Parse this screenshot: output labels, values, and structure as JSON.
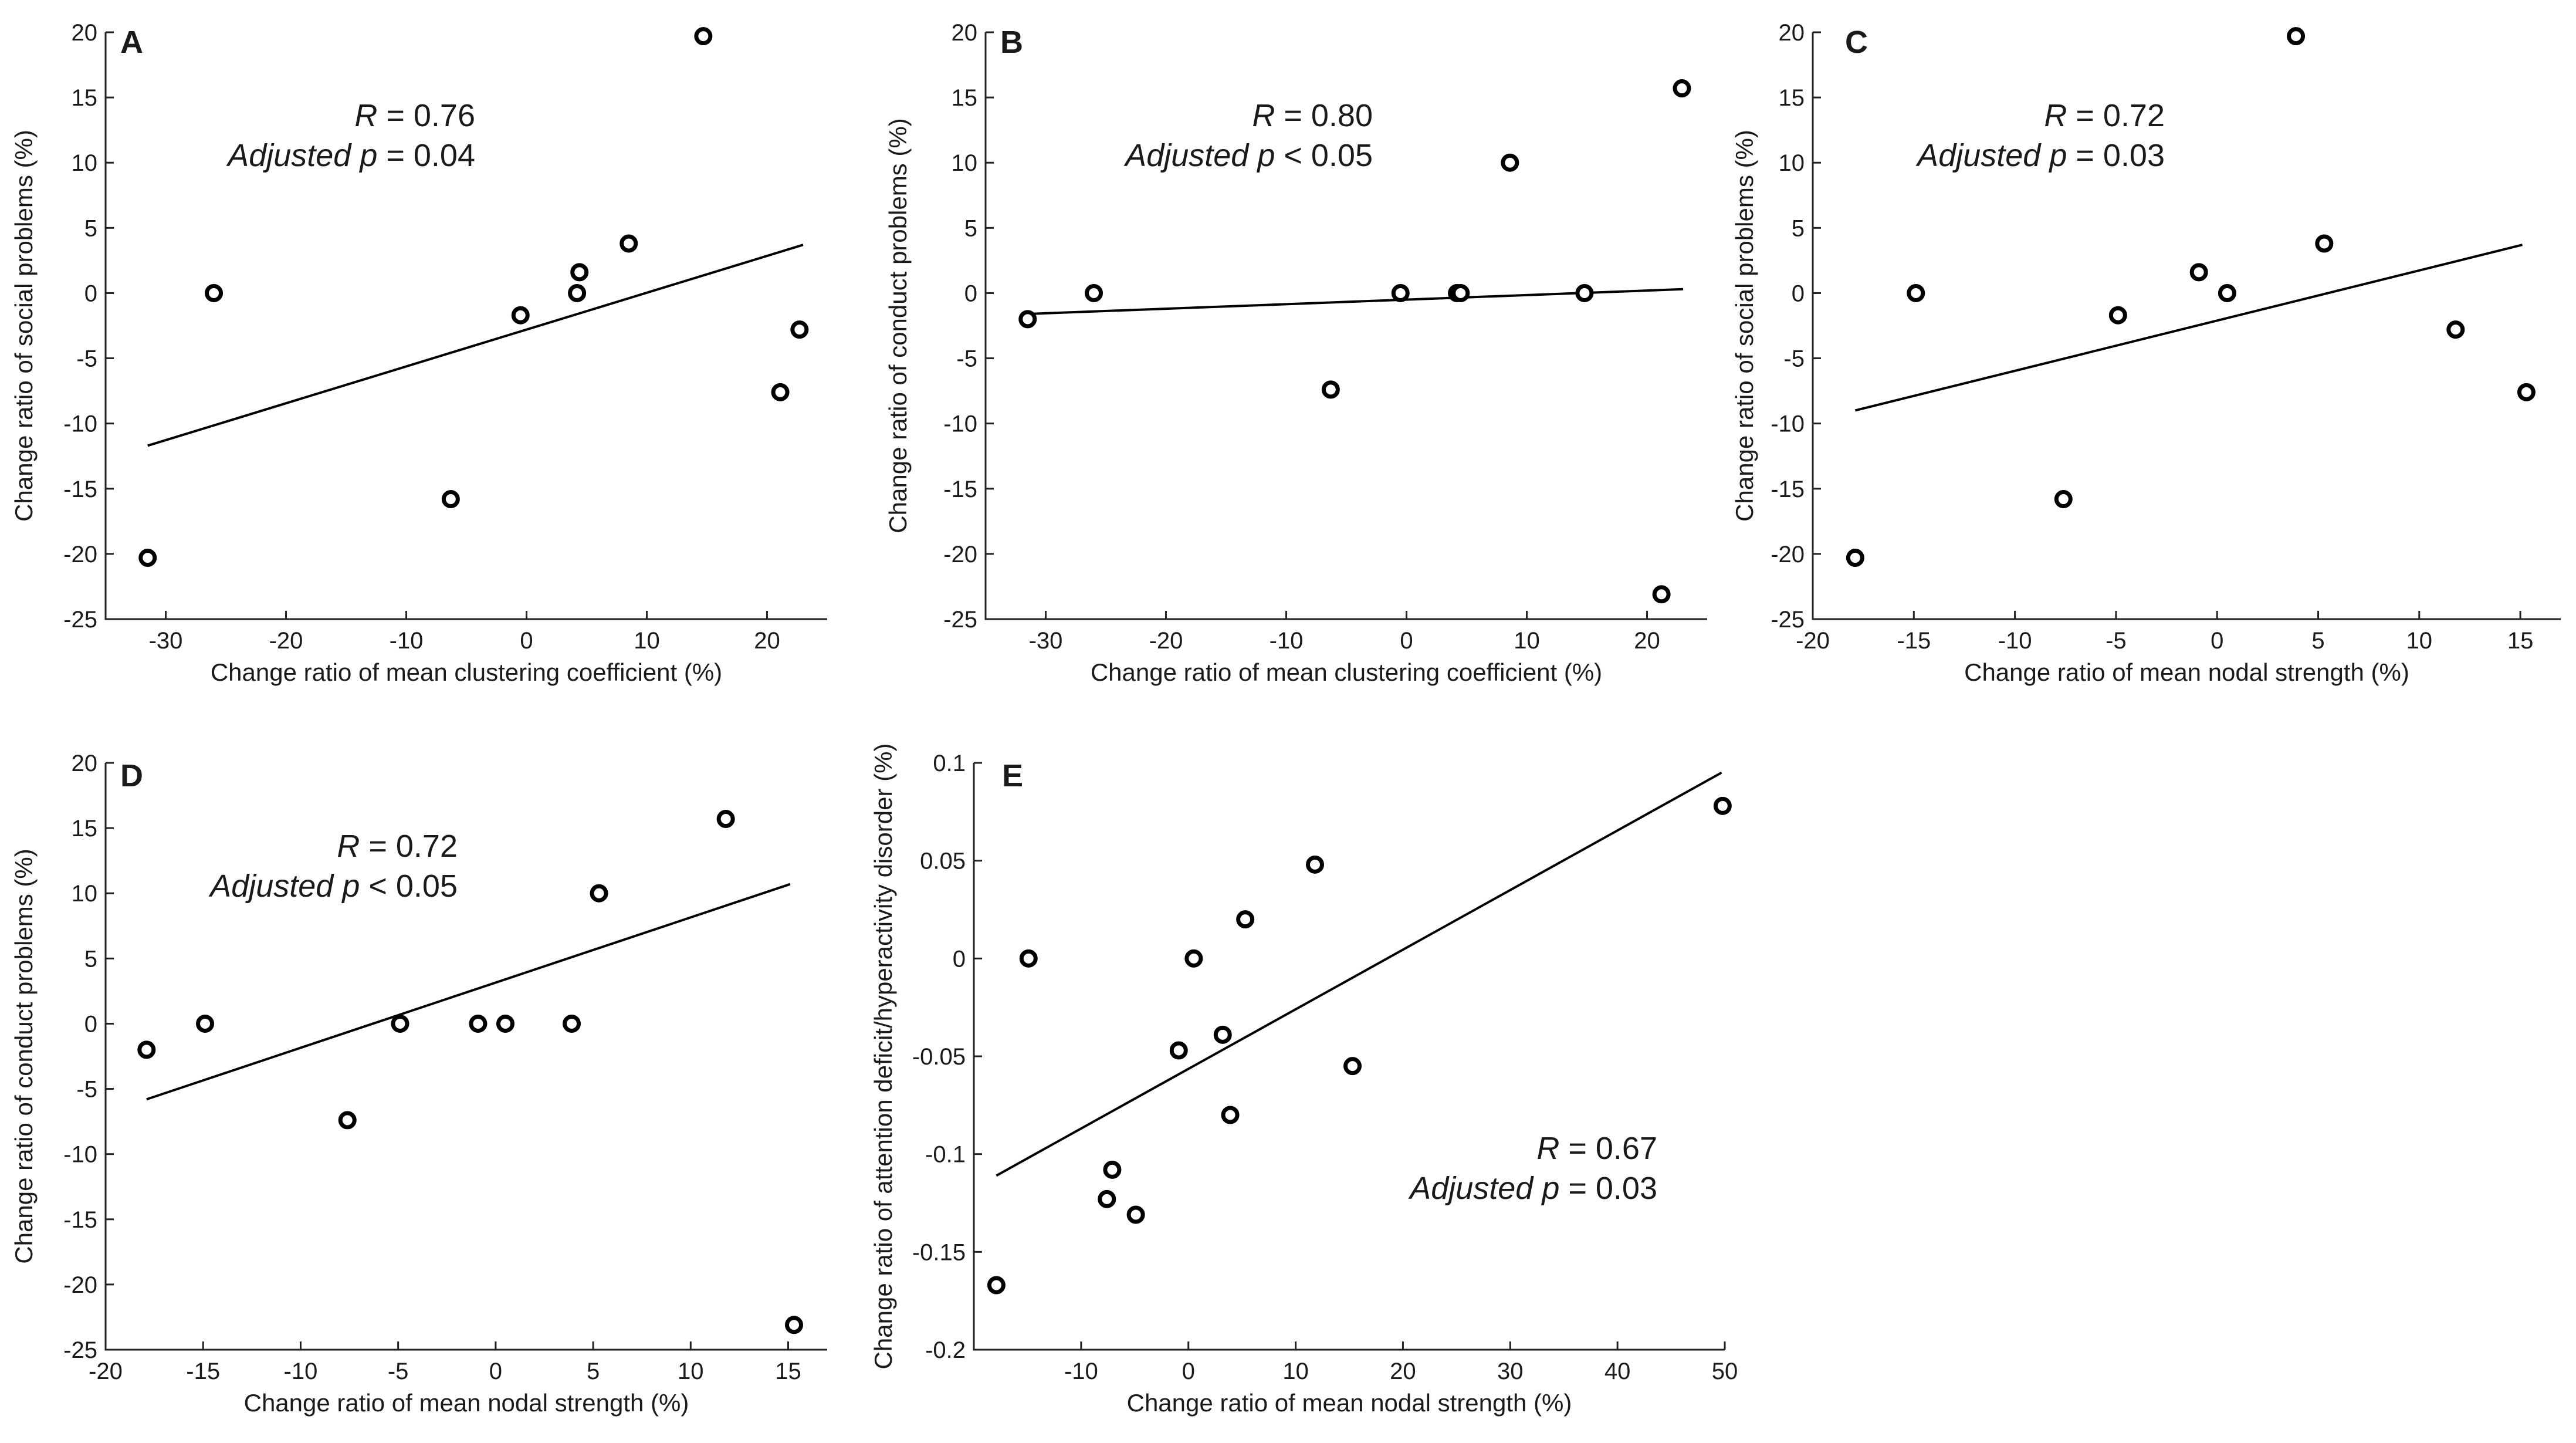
{
  "chart_data": [
    {
      "panel": "A",
      "type": "scatter",
      "xlabel": "Change ratio of mean clustering coefficient (%)",
      "ylabel": "Change ratio of social problems (%)",
      "xlim": [
        -35,
        25
      ],
      "ylim": [
        -25,
        20
      ],
      "xticks": [
        -30,
        -20,
        -10,
        0,
        10,
        20
      ],
      "yticks": [
        -25,
        -20,
        -15,
        -10,
        -5,
        0,
        5,
        10,
        15,
        20
      ],
      "points": [
        [
          -31.5,
          -20.3
        ],
        [
          -26,
          0
        ],
        [
          -6.3,
          -15.8
        ],
        [
          -0.5,
          -1.7
        ],
        [
          4.2,
          0
        ],
        [
          4.4,
          1.6
        ],
        [
          8.5,
          3.8
        ],
        [
          14.7,
          19.7
        ],
        [
          21.1,
          -7.6
        ],
        [
          22.7,
          -2.8
        ]
      ],
      "fit": [
        [
          -31.5,
          -11.7
        ],
        [
          23,
          3.7
        ]
      ],
      "annotation": {
        "r_prefix": "R",
        "r_value": "= 0.76",
        "p_prefix": "Adjusted p",
        "p_value": "= 0.04"
      }
    },
    {
      "panel": "B",
      "type": "scatter",
      "xlabel": "Change ratio of mean clustering coefficient (%)",
      "ylabel": "Change ratio of conduct problems (%)",
      "xlim": [
        -35,
        25
      ],
      "ylim": [
        -25,
        20
      ],
      "xticks": [
        -30,
        -20,
        -10,
        0,
        10,
        20
      ],
      "yticks": [
        -25,
        -20,
        -15,
        -10,
        -5,
        0,
        5,
        10,
        15,
        20
      ],
      "points": [
        [
          -31.5,
          -2
        ],
        [
          -26,
          0
        ],
        [
          -6.3,
          -7.4
        ],
        [
          -0.5,
          0
        ],
        [
          4.2,
          0
        ],
        [
          4.5,
          0
        ],
        [
          8.6,
          10
        ],
        [
          14.8,
          0
        ],
        [
          21.2,
          -23.1
        ],
        [
          22.9,
          15.7
        ]
      ],
      "fit": [
        [
          -31.5,
          -1.6
        ],
        [
          23,
          0.3
        ]
      ],
      "annotation": {
        "r_prefix": "R",
        "r_value": "= 0.80",
        "p_prefix": "Adjusted p",
        "p_value": "< 0.05"
      }
    },
    {
      "panel": "C",
      "type": "scatter",
      "xlabel": "Change ratio of mean nodal strength (%)",
      "ylabel": "Change ratio of social problems (%)",
      "xlim": [
        -20,
        17
      ],
      "ylim": [
        -25,
        20
      ],
      "xticks": [
        -20,
        -15,
        -10,
        -5,
        0,
        5,
        10,
        15
      ],
      "yticks": [
        -25,
        -20,
        -15,
        -10,
        -5,
        0,
        5,
        10,
        15,
        20
      ],
      "points": [
        [
          -17.9,
          -20.3
        ],
        [
          -14.9,
          0
        ],
        [
          -7.6,
          -15.8
        ],
        [
          -4.9,
          -1.7
        ],
        [
          -0.9,
          1.6
        ],
        [
          0.5,
          0
        ],
        [
          3.9,
          19.7
        ],
        [
          5.3,
          3.8
        ],
        [
          11.8,
          -2.8
        ],
        [
          15.3,
          -7.6
        ]
      ],
      "fit": [
        [
          -17.9,
          -9
        ],
        [
          15.1,
          3.7
        ]
      ],
      "annotation": {
        "r_prefix": "R",
        "r_value": "= 0.72",
        "p_prefix": "Adjusted p",
        "p_value": "= 0.03"
      }
    },
    {
      "panel": "D",
      "type": "scatter",
      "xlabel": "Change ratio of mean nodal strength (%)",
      "ylabel": "Change ratio of conduct problems (%)",
      "xlim": [
        -20,
        17
      ],
      "ylim": [
        -25,
        20
      ],
      "xticks": [
        -20,
        -15,
        -10,
        -5,
        0,
        5,
        10,
        15
      ],
      "yticks": [
        -25,
        -20,
        -15,
        -10,
        -5,
        0,
        5,
        10,
        15,
        20
      ],
      "points": [
        [
          -17.9,
          -2
        ],
        [
          -14.9,
          0
        ],
        [
          -7.6,
          -7.4
        ],
        [
          -4.9,
          0
        ],
        [
          -0.9,
          0
        ],
        [
          0.5,
          0
        ],
        [
          3.9,
          0
        ],
        [
          5.3,
          10
        ],
        [
          11.8,
          15.7
        ],
        [
          15.3,
          -23.1
        ]
      ],
      "fit": [
        [
          -17.9,
          -5.8
        ],
        [
          15.1,
          10.7
        ]
      ],
      "annotation": {
        "r_prefix": "R",
        "r_value": "= 0.72",
        "p_prefix": "Adjusted p",
        "p_value": "< 0.05"
      }
    },
    {
      "panel": "E",
      "type": "scatter",
      "xlabel": "Change ratio of mean nodal strength (%)",
      "ylabel": "Change ratio of attention deficit/hyperactivity disorder (%)",
      "xlim": [
        -20,
        50
      ],
      "ylim": [
        -0.2,
        0.1
      ],
      "xticks": [
        -10,
        0,
        10,
        20,
        30,
        40,
        50
      ],
      "yticks": [
        -0.2,
        -0.15,
        -0.1,
        -0.05,
        0,
        0.05,
        0.1
      ],
      "points": [
        [
          -17.9,
          -0.167
        ],
        [
          -14.9,
          0
        ],
        [
          -7.6,
          -0.123
        ],
        [
          -7.1,
          -0.108
        ],
        [
          -4.9,
          -0.131
        ],
        [
          -0.9,
          -0.047
        ],
        [
          0.5,
          0
        ],
        [
          3.2,
          -0.039
        ],
        [
          3.9,
          -0.08
        ],
        [
          5.3,
          0.02
        ],
        [
          11.8,
          0.048
        ],
        [
          15.3,
          -0.055
        ],
        [
          49.8,
          0.078
        ]
      ],
      "fit": [
        [
          -17.9,
          -0.111
        ],
        [
          49.7,
          0.095
        ]
      ],
      "annotation": {
        "r_prefix": "R",
        "r_value": "= 0.67",
        "p_prefix": "Adjusted  p",
        "p_value": "= 0.03"
      }
    }
  ]
}
